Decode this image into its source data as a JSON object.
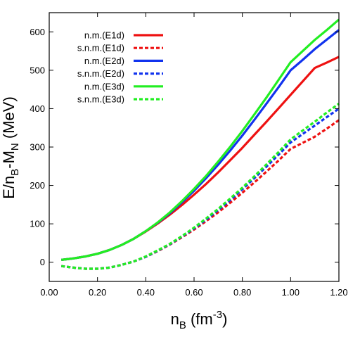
{
  "chart_data": {
    "type": "line",
    "xlabel": {
      "main": "n",
      "sub": "B",
      "unit_open": " (fm",
      "unit_sup": "-3",
      "unit_close": ")"
    },
    "ylabel": {
      "e": "E/n",
      "sub1": "B",
      "mid": "-M",
      "sub2": "N",
      "unit": " (MeV)"
    },
    "xlim": [
      0.0,
      1.2
    ],
    "ylim": [
      -50,
      650
    ],
    "xticks": [
      0.0,
      0.2,
      0.4,
      0.6,
      0.8,
      1.0,
      1.2
    ],
    "xtick_labels": [
      "0.00",
      "0.20",
      "0.40",
      "0.60",
      "0.80",
      "1.00",
      "1.20"
    ],
    "yticks": [
      0,
      100,
      200,
      300,
      400,
      500,
      600
    ],
    "ytick_labels": [
      "0",
      "100",
      "200",
      "300",
      "400",
      "500",
      "600"
    ],
    "grid": false,
    "legend_position": "top-left",
    "x": [
      0.05,
      0.1,
      0.15,
      0.2,
      0.25,
      0.3,
      0.35,
      0.4,
      0.45,
      0.5,
      0.55,
      0.6,
      0.65,
      0.7,
      0.75,
      0.8,
      0.85,
      0.9,
      0.95,
      1.0,
      1.05,
      1.1,
      1.15,
      1.2
    ],
    "series": [
      {
        "name": "n.m.(E1d)",
        "color": "#ee1111",
        "dash": "solid",
        "values": [
          6,
          10,
          15,
          22,
          32,
          45,
          61,
          80,
          101,
          124,
          149,
          176,
          204,
          234,
          266,
          298,
          332,
          366,
          401,
          436,
          471,
          506,
          520,
          535
        ]
      },
      {
        "name": "s.n.m.(E1d)",
        "color": "#ee1111",
        "dash": "dashed",
        "values": [
          -10,
          -14,
          -17,
          -17,
          -14,
          -7,
          2,
          14,
          29,
          46,
          65,
          85,
          107,
          130,
          155,
          181,
          208,
          236,
          265,
          295,
          311,
          327,
          348,
          370
        ]
      },
      {
        "name": "n.m.(E2d)",
        "color": "#1133ee",
        "dash": "solid",
        "values": [
          6,
          10,
          15,
          22,
          32,
          45,
          61,
          81,
          103,
          128,
          156,
          186,
          219,
          254,
          291,
          330,
          371,
          413,
          456,
          500,
          527,
          555,
          580,
          605
        ]
      },
      {
        "name": "s.n.m.(E2d)",
        "color": "#1133ee",
        "dash": "dashed",
        "values": [
          -10,
          -14,
          -17,
          -17,
          -14,
          -7,
          2,
          14,
          30,
          47,
          67,
          88,
          111,
          136,
          162,
          190,
          219,
          249,
          280,
          312,
          334,
          356,
          378,
          400
        ]
      },
      {
        "name": "n.m.(E3d)",
        "color": "#22ee22",
        "dash": "solid",
        "values": [
          6,
          10,
          15,
          22,
          32,
          45,
          61,
          81,
          104,
          130,
          159,
          191,
          225,
          262,
          301,
          342,
          385,
          429,
          475,
          521,
          550,
          579,
          605,
          632
        ]
      },
      {
        "name": "s.n.m.(E3d)",
        "color": "#22ee22",
        "dash": "dashed",
        "values": [
          -10,
          -14,
          -17,
          -17,
          -14,
          -7,
          2,
          15,
          31,
          48,
          68,
          90,
          114,
          139,
          166,
          194,
          224,
          255,
          287,
          320,
          343,
          366,
          390,
          413
        ]
      }
    ]
  }
}
